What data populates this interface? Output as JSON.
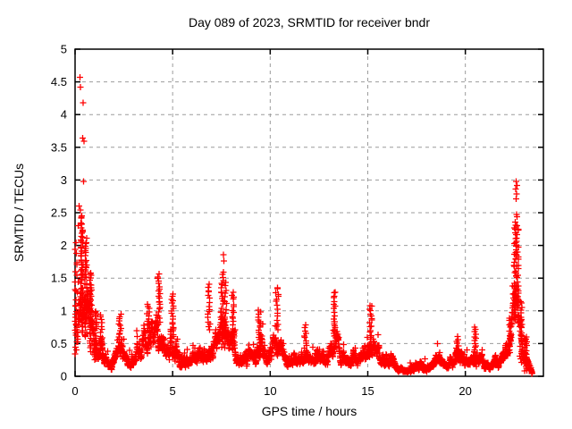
{
  "chart_data": {
    "type": "scatter",
    "title": "Day 089 of 2023, SRMTID for receiver bndr",
    "xlabel": "GPS time / hours",
    "ylabel": "SRMTID / TECUs",
    "xlim": [
      0,
      24
    ],
    "ylim": [
      0,
      5
    ],
    "xticks": [
      0,
      5,
      10,
      15,
      20
    ],
    "yticks": [
      0,
      0.5,
      1,
      1.5,
      2,
      2.5,
      3,
      3.5,
      4,
      4.5,
      5
    ],
    "grid": true,
    "grid_color": "#9c9c9c",
    "marker": {
      "shape": "plus",
      "color": "#ff0000",
      "size": 7
    },
    "point_spacing_hours": 0.00833,
    "x_data_start": 0.004,
    "x_data_end": 23.42,
    "envelope_comment": "knots of [hour, typical_low, typical_high] for the dense scatter band read off the plot",
    "envelope": [
      [
        0.0,
        0.25,
        2.0
      ],
      [
        0.3,
        0.5,
        2.4
      ],
      [
        0.6,
        0.45,
        2.1
      ],
      [
        0.9,
        0.3,
        1.5
      ],
      [
        1.2,
        0.15,
        1.0
      ],
      [
        1.5,
        0.1,
        0.7
      ],
      [
        1.8,
        0.05,
        0.4
      ],
      [
        2.1,
        0.08,
        0.6
      ],
      [
        2.35,
        0.1,
        0.9
      ],
      [
        2.7,
        0.08,
        0.5
      ],
      [
        3.1,
        0.1,
        0.7
      ],
      [
        3.5,
        0.12,
        0.95
      ],
      [
        3.9,
        0.15,
        1.25
      ],
      [
        4.3,
        0.2,
        1.5
      ],
      [
        4.7,
        0.15,
        1.05
      ],
      [
        5.0,
        0.15,
        1.2
      ],
      [
        5.35,
        0.05,
        0.5
      ],
      [
        5.8,
        0.08,
        0.55
      ],
      [
        6.2,
        0.1,
        0.8
      ],
      [
        6.55,
        0.1,
        0.7
      ],
      [
        6.85,
        0.15,
        1.35
      ],
      [
        7.15,
        0.1,
        0.85
      ],
      [
        7.5,
        0.2,
        1.55
      ],
      [
        7.75,
        0.2,
        1.4
      ],
      [
        8.1,
        0.15,
        1.25
      ],
      [
        8.5,
        0.08,
        0.65
      ],
      [
        8.9,
        0.1,
        0.8
      ],
      [
        9.4,
        0.12,
        0.95
      ],
      [
        9.8,
        0.1,
        0.75
      ],
      [
        10.35,
        0.12,
        1.2
      ],
      [
        10.7,
        0.08,
        0.6
      ],
      [
        11.2,
        0.06,
        0.5
      ],
      [
        11.7,
        0.1,
        0.75
      ],
      [
        12.1,
        0.08,
        0.6
      ],
      [
        12.5,
        0.1,
        0.7
      ],
      [
        12.9,
        0.08,
        0.55
      ],
      [
        13.3,
        0.15,
        1.15
      ],
      [
        13.65,
        0.1,
        0.8
      ],
      [
        14.1,
        0.08,
        0.55
      ],
      [
        14.55,
        0.08,
        0.6
      ],
      [
        15.0,
        0.1,
        0.8
      ],
      [
        15.25,
        0.15,
        1.0
      ],
      [
        15.6,
        0.12,
        0.8
      ],
      [
        16.0,
        0.08,
        0.55
      ],
      [
        16.5,
        0.05,
        0.4
      ],
      [
        17.0,
        0.04,
        0.3
      ],
      [
        17.5,
        0.04,
        0.32
      ],
      [
        18.0,
        0.05,
        0.38
      ],
      [
        18.5,
        0.07,
        0.5
      ],
      [
        19.0,
        0.06,
        0.45
      ],
      [
        19.5,
        0.08,
        0.55
      ],
      [
        20.0,
        0.08,
        0.5
      ],
      [
        20.5,
        0.1,
        0.7
      ],
      [
        21.0,
        0.04,
        0.3
      ],
      [
        21.5,
        0.08,
        0.55
      ],
      [
        21.9,
        0.1,
        0.45
      ],
      [
        22.2,
        0.2,
        0.8
      ],
      [
        22.45,
        0.4,
        1.8
      ],
      [
        22.6,
        0.6,
        2.3
      ],
      [
        22.75,
        0.3,
        1.3
      ],
      [
        22.95,
        0.1,
        0.7
      ],
      [
        23.15,
        0.06,
        0.5
      ],
      [
        23.42,
        0.02,
        0.15
      ]
    ],
    "clusters_comment": "dense vertical spike columns [hour, y_low, y_high, n_points]",
    "clusters": [
      [
        0.05,
        0.3,
        2.0,
        22
      ],
      [
        0.35,
        0.9,
        2.42,
        55
      ],
      [
        0.55,
        0.6,
        2.1,
        45
      ],
      [
        0.8,
        0.4,
        1.6,
        35
      ],
      [
        1.05,
        0.25,
        1.0,
        25
      ],
      [
        1.35,
        0.3,
        0.95,
        15
      ],
      [
        2.3,
        0.45,
        0.95,
        15
      ],
      [
        3.75,
        0.7,
        1.1,
        12
      ],
      [
        4.3,
        0.8,
        1.55,
        22
      ],
      [
        5.0,
        0.6,
        1.27,
        18
      ],
      [
        6.85,
        0.7,
        1.42,
        16
      ],
      [
        7.55,
        0.45,
        1.6,
        28
      ],
      [
        7.72,
        0.45,
        1.45,
        18
      ],
      [
        8.1,
        0.5,
        1.3,
        18
      ],
      [
        9.45,
        0.4,
        1.0,
        20
      ],
      [
        10.35,
        0.7,
        1.35,
        13
      ],
      [
        11.8,
        0.35,
        0.78,
        12
      ],
      [
        13.3,
        0.45,
        1.28,
        18
      ],
      [
        15.15,
        0.45,
        1.07,
        18
      ],
      [
        19.6,
        0.25,
        0.6,
        12
      ],
      [
        20.5,
        0.3,
        0.75,
        14
      ],
      [
        22.3,
        0.35,
        0.9,
        12
      ],
      [
        22.55,
        0.85,
        2.35,
        38
      ],
      [
        22.67,
        1.1,
        2.3,
        26
      ],
      [
        22.85,
        0.2,
        1.15,
        22
      ],
      [
        23.1,
        0.08,
        0.6,
        26
      ]
    ],
    "outliers_comment": "individually visible high points [hour, TECUs]",
    "outliers": [
      [
        0.25,
        4.57
      ],
      [
        0.28,
        4.42
      ],
      [
        0.42,
        4.18
      ],
      [
        0.38,
        3.64
      ],
      [
        0.46,
        3.59
      ],
      [
        0.44,
        2.98
      ],
      [
        0.2,
        2.6
      ],
      [
        0.28,
        2.54
      ],
      [
        0.33,
        2.43
      ],
      [
        0.15,
        2.3
      ],
      [
        7.6,
        1.86
      ],
      [
        7.63,
        1.76
      ],
      [
        10.38,
        1.34
      ],
      [
        10.42,
        1.22
      ],
      [
        13.28,
        1.28
      ],
      [
        13.33,
        1.07
      ],
      [
        15.2,
        1.07
      ],
      [
        22.6,
        2.98
      ],
      [
        22.64,
        2.92
      ],
      [
        22.58,
        2.86
      ],
      [
        22.62,
        2.79
      ],
      [
        22.6,
        2.71
      ],
      [
        22.63,
        2.47
      ],
      [
        22.66,
        2.44
      ]
    ],
    "colors": {
      "marker": "#ff0000",
      "axis": "#000000",
      "grid": "#9c9c9c",
      "background": "#ffffff"
    }
  }
}
